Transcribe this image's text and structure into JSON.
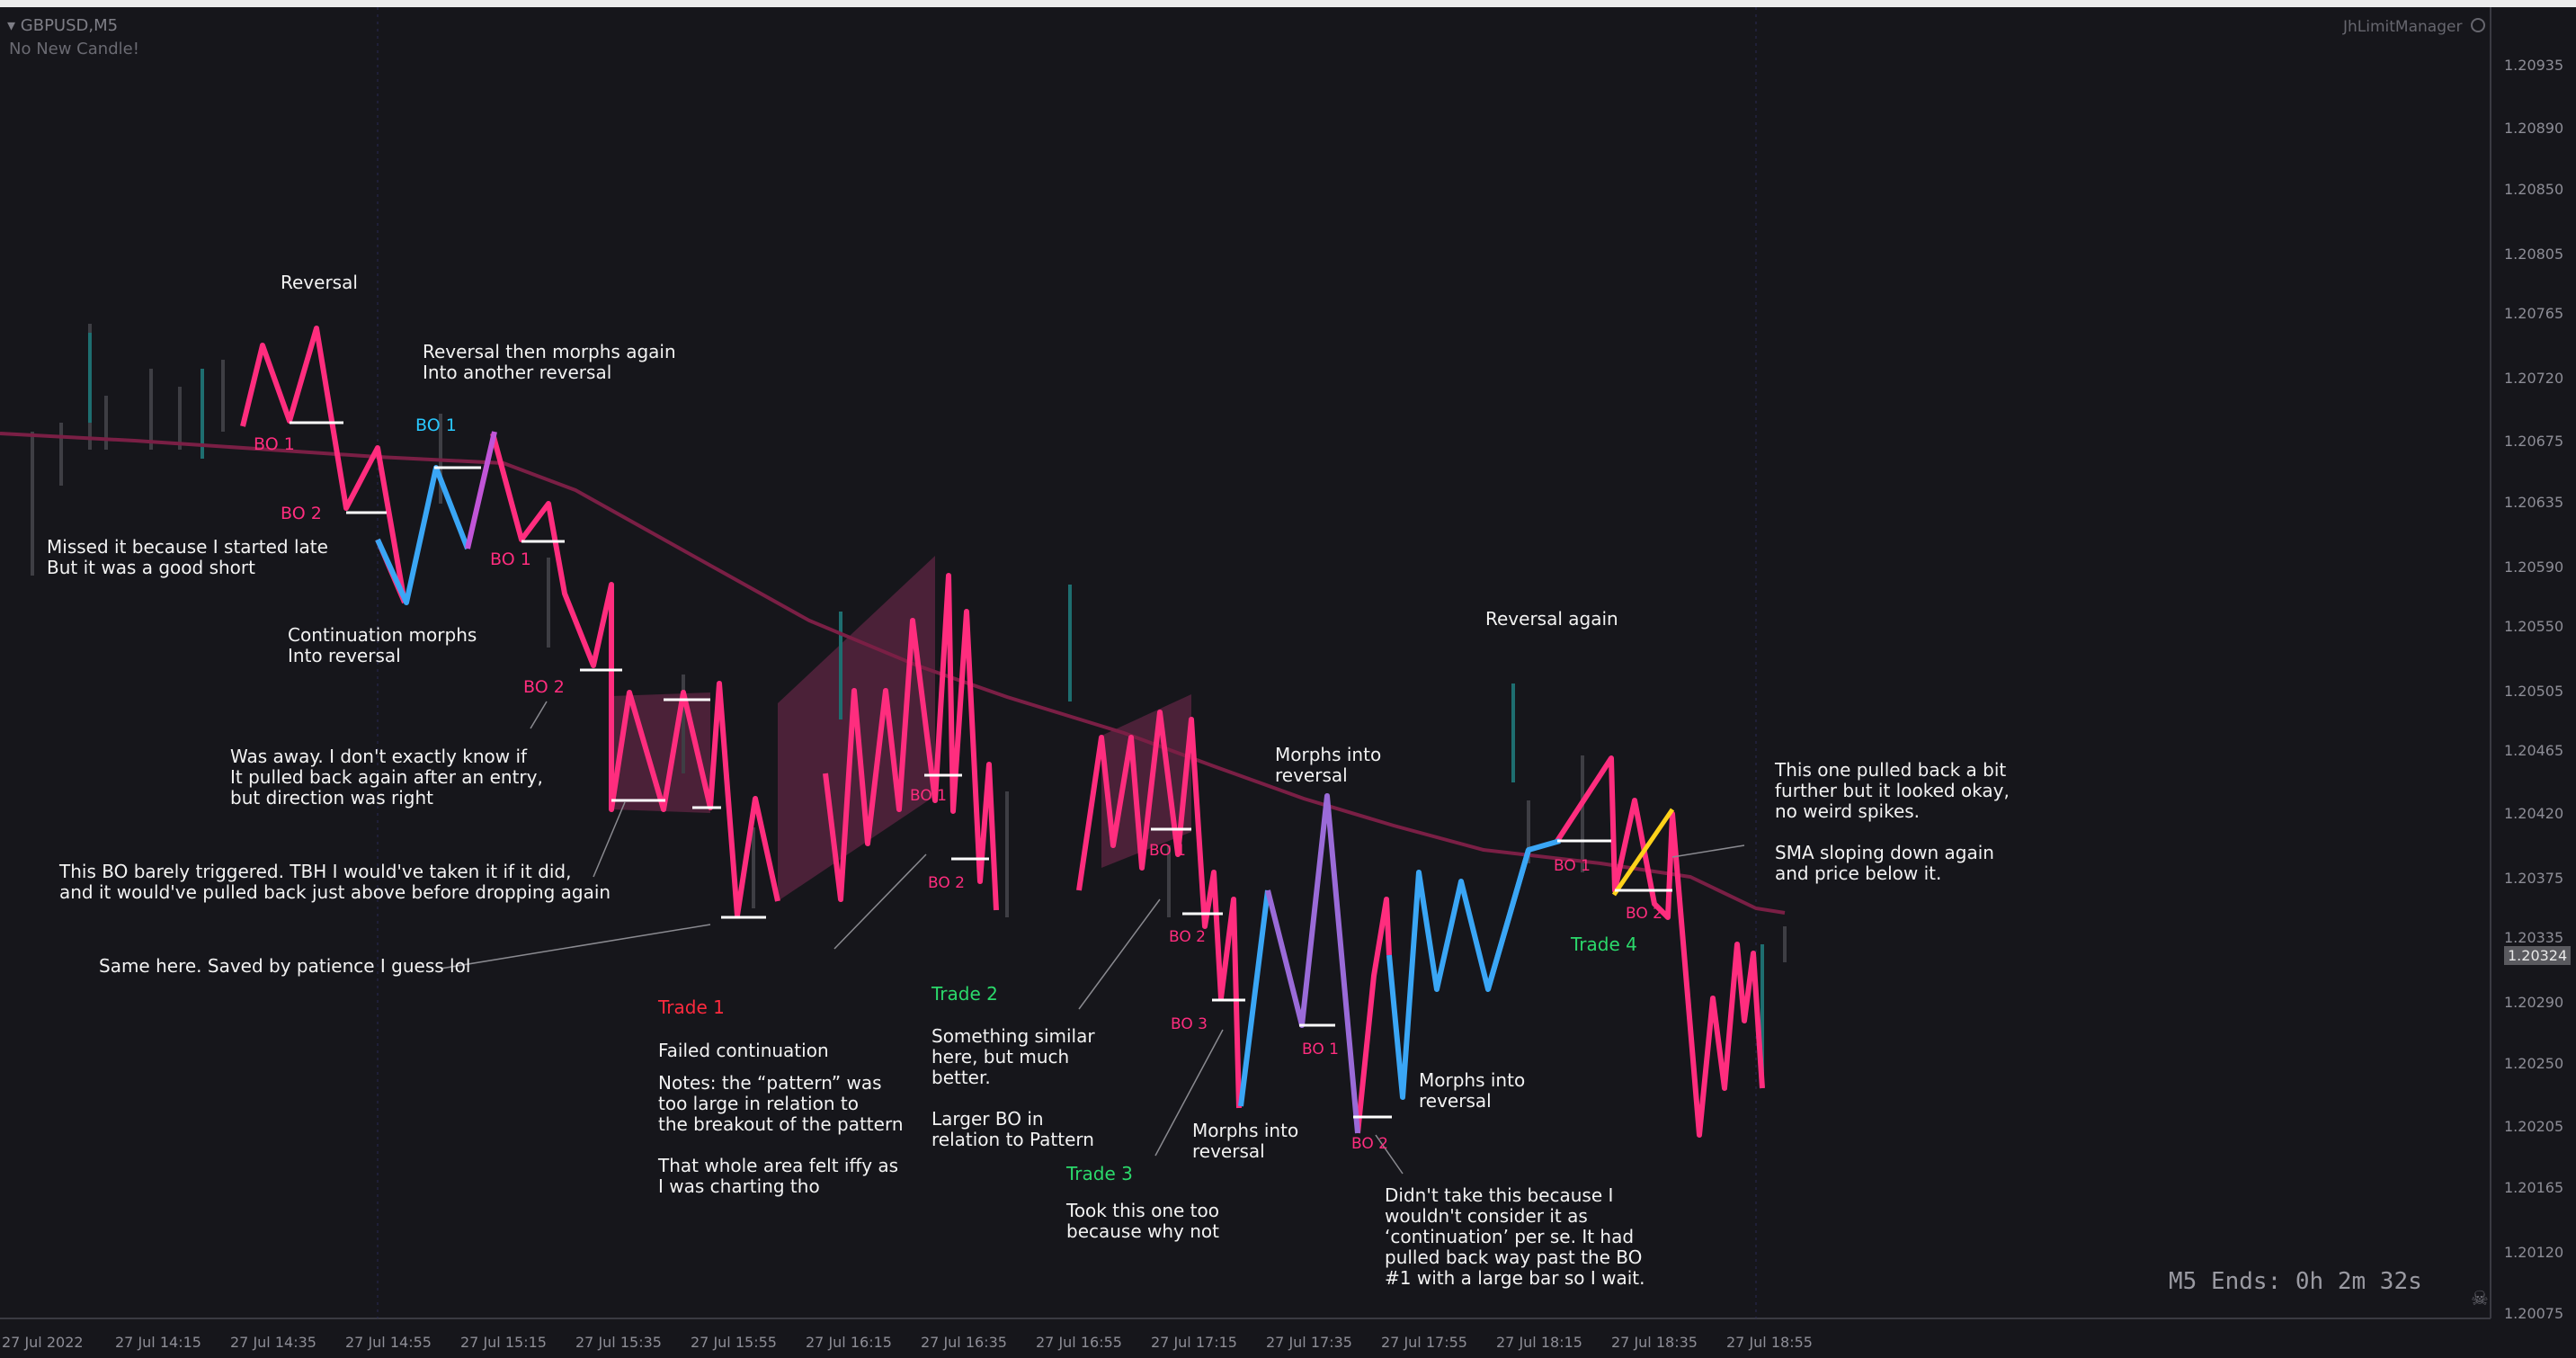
{
  "header": {
    "symbol": "GBPUSD,M5",
    "indicator_status": "No New Candle!",
    "manager": "JhLimitManager",
    "timer": "M5 Ends: 0h 2m 32s"
  },
  "price_axis": [
    "1.20935",
    "1.20890",
    "1.20850",
    "1.20805",
    "1.20765",
    "1.20720",
    "1.20675",
    "1.20635",
    "1.20590",
    "1.20550",
    "1.20505",
    "1.20465",
    "1.20420",
    "1.20375",
    "1.20335",
    "1.20290",
    "1.20250",
    "1.20205",
    "1.20165",
    "1.20120",
    "1.20075"
  ],
  "current_price": "1.20324",
  "time_axis": [
    "27 Jul 2022",
    "27 Jul 14:15",
    "27 Jul 14:35",
    "27 Jul 14:55",
    "27 Jul 15:15",
    "27 Jul 15:35",
    "27 Jul 15:55",
    "27 Jul 16:15",
    "27 Jul 16:35",
    "27 Jul 16:55",
    "27 Jul 17:15",
    "27 Jul 17:35",
    "27 Jul 17:55",
    "27 Jul 18:15",
    "27 Jul 18:35",
    "27 Jul 18:55"
  ],
  "colors": {
    "pink": "#ff2d7e",
    "blue": "#3aa6f5",
    "yellow": "#ffd21a",
    "sma": "#7a1f45",
    "shade": "#8c2f5e"
  },
  "annotations": {
    "reversal": "Reversal",
    "reversal_morphs": "Reversal then morphs again\nInto another reversal",
    "missed": "Missed it because I started late\nBut it was a good short",
    "continuation": "Continuation morphs\nInto reversal",
    "away": "Was away. I don't exactly know if\nIt pulled back again after an entry,\nbut direction was right",
    "barely": "This BO barely triggered. TBH I would've taken it if it did,\nand it would've pulled back just above before dropping again",
    "same_here": "Same here. Saved by patience I guess lol",
    "trade1_title": "Trade 1",
    "trade1_body": "Failed continuation",
    "trade1_notes": "Notes: the “pattern” was\ntoo large in relation to\nthe breakout of the pattern\n\nThat whole area felt iffy as\nI was charting tho",
    "trade2_title": "Trade 2",
    "trade2_body": "Something similar\nhere, but much\nbetter.\n\nLarger BO in\nrelation to Pattern",
    "trade3_title": "Trade 3",
    "trade3_body": "Took this one too\nbecause why not",
    "morphs_reversal_top": "Morphs into\nreversal",
    "morphs_reversal_bottom": "Morphs into\nreversal",
    "morphs_reversal_right": "Morphs into\nreversal",
    "didnt_take": "Didn't take this because I\nwouldn't consider it as\n‘continuation’ per se. It had\npulled back way past the BO\n#1 with a large bar so I wait.",
    "reversal_again": "Reversal again",
    "pulled_back": "This one pulled back a bit\nfurther but it looked okay,\nno weird spikes.",
    "sma_sloping": "SMA sloping down again\nand price below it.",
    "trade4_title": "Trade 4"
  },
  "bo_labels": [
    "BO 1",
    "BO 2",
    "BO 1",
    "BO 1",
    "BO 2",
    "BO 1",
    "BO 2",
    "BO 1",
    "BO 2",
    "BO 3",
    "BO 1",
    "BO 2",
    "BO 1",
    "BO 2"
  ],
  "bo_label_cyan": "BO 1"
}
